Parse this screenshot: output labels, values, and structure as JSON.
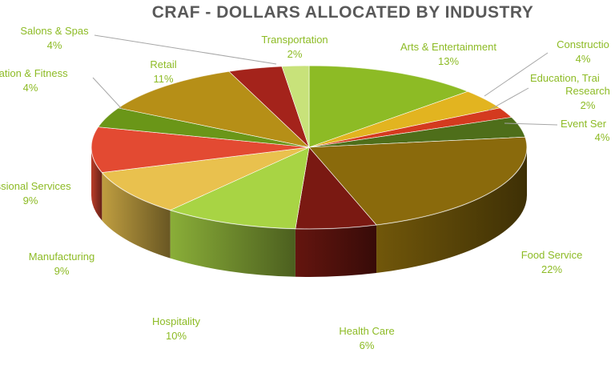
{
  "chart_data": {
    "type": "pie",
    "title": "CRAF - DOLLARS ALLOCATED BY INDUSTRY",
    "slices": [
      {
        "label": "Arts & Entertainment",
        "display_label": "Arts & Entertainment",
        "value": 13,
        "value_label": "13%",
        "color": "#8dbb25"
      },
      {
        "label": "Construction",
        "display_label": "Constructio",
        "value": 4,
        "value_label": "4%",
        "color": "#e2b420"
      },
      {
        "label": "Education, Training & Research",
        "display_label": "Education, Trai",
        "display_label_2": "Research",
        "value": 2,
        "value_label": "2%",
        "color": "#d43a1f"
      },
      {
        "label": "Event Services",
        "display_label": "Event Ser",
        "value": 4,
        "value_label": "4%",
        "color": "#4e6e1a"
      },
      {
        "label": "Food Service",
        "display_label": "Food Service",
        "value": 22,
        "value_label": "22%",
        "color": "#8a6a0c"
      },
      {
        "label": "Health Care",
        "display_label": "Health Care",
        "value": 6,
        "value_label": "6%",
        "color": "#7a1912"
      },
      {
        "label": "Hospitality",
        "display_label": "Hospitality",
        "value": 10,
        "value_label": "10%",
        "color": "#a8d444"
      },
      {
        "label": "Manufacturing",
        "display_label": "Manufacturing",
        "value": 9,
        "value_label": "9%",
        "color": "#e9c14e"
      },
      {
        "label": "Professional Services",
        "display_label": "essional Services",
        "value": 9,
        "value_label": "9%",
        "color": "#e34a32"
      },
      {
        "label": "Recreation & Fitness",
        "display_label": "eation & Fitness",
        "value": 4,
        "value_label": "4%",
        "color": "#6a9618"
      },
      {
        "label": "Retail",
        "display_label": "Retail",
        "value": 11,
        "value_label": "11%",
        "color": "#b68f17"
      },
      {
        "label": "Salons & Spas",
        "display_label": "Salons & Spas",
        "value": 4,
        "value_label": "4%",
        "color": "#a4231b"
      },
      {
        "label": "Transportation",
        "display_label": "Transportation",
        "value": 2,
        "value_label": "2%",
        "color": "#c8e27a"
      }
    ],
    "label_color": "#8dbb25",
    "title_color": "#595959",
    "legend": "none (data labels)"
  }
}
